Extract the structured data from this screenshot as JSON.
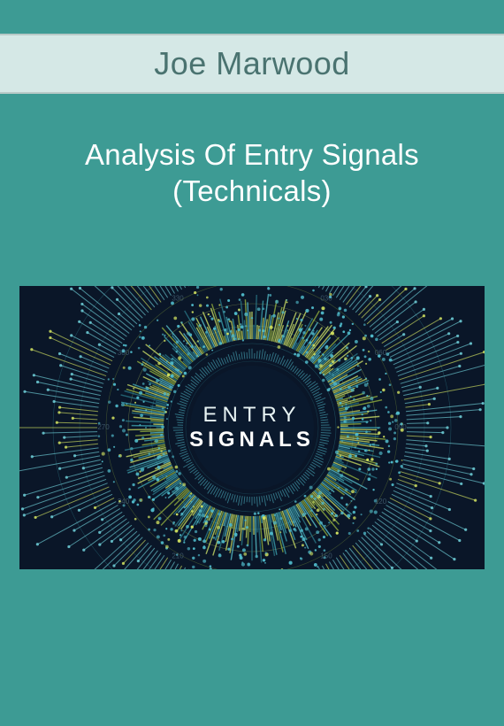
{
  "author": "Joe Marwood",
  "title_line1": "Analysis Of Entry Signals",
  "title_line2": "(Technicals)",
  "graphic": {
    "background_color": "#0a1628",
    "center_label_line1": "ENTRY",
    "center_label_line2": "SIGNALS",
    "center_label_color1": "#e8f4f4",
    "center_label_color2": "#ffffff",
    "ring_colors": [
      "#2a7a8a",
      "#3fa8b5",
      "#5cc9d4",
      "#d4e86a",
      "#9bb83f"
    ],
    "dot_color_primary": "#4fb8c8",
    "dot_color_accent": "#d0e060",
    "ray_color": "#6fcfd8"
  },
  "layout": {
    "page_bg": "#3d9b94",
    "banner_bg": "#d5e8e6",
    "banner_border": "#b8c9c7",
    "author_color": "#4a7370",
    "title_color": "#ffffff"
  }
}
